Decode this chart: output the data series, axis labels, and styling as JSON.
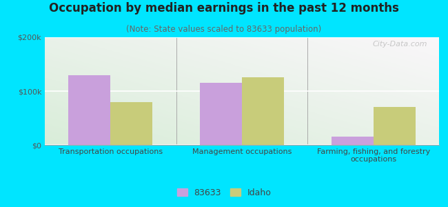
{
  "title": "Occupation by median earnings in the past 12 months",
  "subtitle": "(Note: State values scaled to 83633 population)",
  "categories": [
    "Transportation occupations",
    "Management occupations",
    "Farming, fishing, and forestry\noccupations"
  ],
  "values_83633": [
    130000,
    115000,
    15000
  ],
  "values_idaho": [
    80000,
    125000,
    70000
  ],
  "color_83633": "#c9a0dc",
  "color_idaho": "#c8cc7a",
  "bg_outer": "#00e5ff",
  "ylim": [
    0,
    200000
  ],
  "yticks": [
    0,
    100000,
    200000
  ],
  "ytick_labels": [
    "$0",
    "$100k",
    "$200k"
  ],
  "legend_label_1": "83633",
  "legend_label_2": "Idaho",
  "bar_width": 0.32,
  "watermark": "City-Data.com",
  "title_fontsize": 12,
  "subtitle_fontsize": 8.5,
  "tick_fontsize": 8,
  "legend_fontsize": 9
}
